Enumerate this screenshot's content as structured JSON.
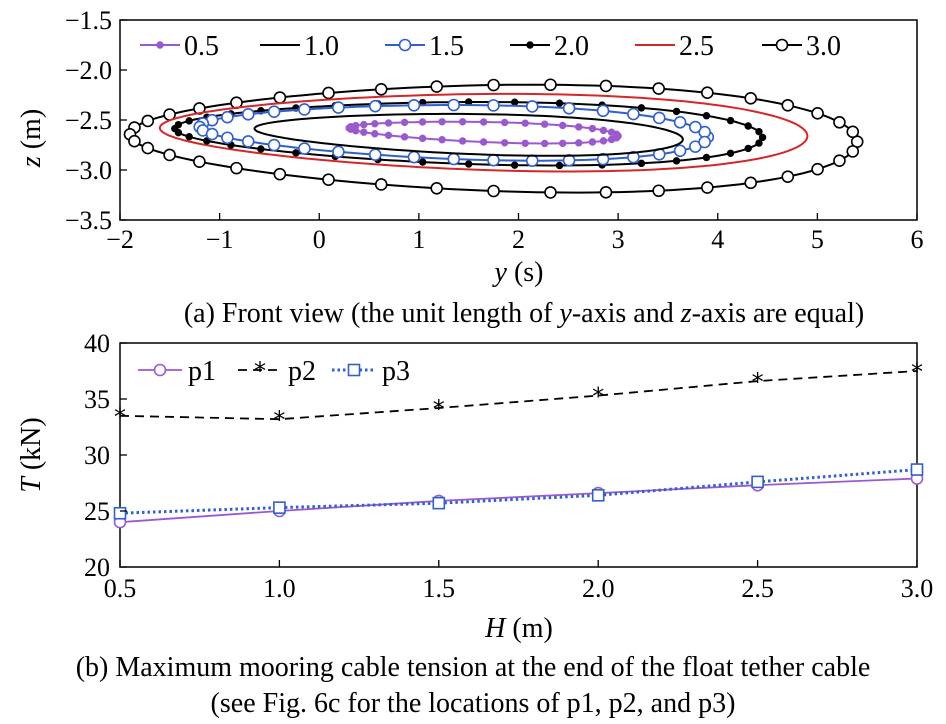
{
  "chart_data": [
    {
      "type": "line",
      "xlabel": "y (s)",
      "xlabel_var": "y",
      "xlabel_unit": "(s)",
      "ylabel": "z (m)",
      "ylabel_var": "z",
      "ylabel_unit": "(m)",
      "xlim": [
        -2,
        6
      ],
      "ylim": [
        -3.5,
        -1.5
      ],
      "xticks": [
        "−2",
        "−1",
        "0",
        "1",
        "2",
        "3",
        "4",
        "5",
        "6"
      ],
      "yticks": [
        "−1.5",
        "−2.0",
        "−2.5",
        "−3.0",
        "−3.5"
      ],
      "legend_position": "top-left",
      "caption": "(a) Front view (the unit length of y-axis and z-axis are equal)",
      "caption_parts": [
        "(a) Front view (the unit length of ",
        "y",
        "-axis and ",
        "z",
        "-axis are equal)"
      ],
      "series": [
        {
          "name": "0.5",
          "color": "#9b59d0",
          "marker": "dot",
          "ellipse": {
            "cx": 1.65,
            "cy": -2.62,
            "ax": 1.35,
            "az": 0.1,
            "tilt": -0.12
          }
        },
        {
          "name": "1.0",
          "color": "#000000",
          "marker": "none",
          "ellipse": {
            "cx": 1.5,
            "cy": -2.64,
            "ax": 2.15,
            "az": 0.2,
            "tilt": -0.1
          }
        },
        {
          "name": "1.5",
          "color": "#2f5fd0",
          "marker": "circle",
          "ellipse": {
            "cx": 1.35,
            "cy": -2.62,
            "ax": 2.55,
            "az": 0.27,
            "tilt": -0.08
          }
        },
        {
          "name": "2.0",
          "color": "#000000",
          "marker": "dot",
          "ellipse": {
            "cx": 1.5,
            "cy": -2.63,
            "ax": 2.95,
            "az": 0.31,
            "tilt": -0.06
          }
        },
        {
          "name": "2.5",
          "color": "#d62728",
          "marker": "none",
          "ellipse": {
            "cx": 1.65,
            "cy": -2.62,
            "ax": 3.25,
            "az": 0.38,
            "tilt": -0.05
          }
        },
        {
          "name": "3.0",
          "color": "#000000",
          "marker": "circle",
          "ellipse": {
            "cx": 1.75,
            "cy": -2.68,
            "ax": 3.65,
            "az": 0.53,
            "tilt": -0.04
          }
        }
      ]
    },
    {
      "type": "line",
      "xlabel": "H (m)",
      "xlabel_var": "H",
      "xlabel_unit": "(m)",
      "ylabel": "T (kN)",
      "ylabel_var": "T",
      "ylabel_unit": "(kN)",
      "x": [
        0.5,
        1.0,
        1.5,
        2.0,
        2.5,
        3.0
      ],
      "xlim": [
        0.5,
        3.0
      ],
      "ylim": [
        20,
        40
      ],
      "xticks": [
        "0.5",
        "1.0",
        "1.5",
        "2.0",
        "2.5",
        "3.0"
      ],
      "yticks": [
        "20",
        "25",
        "30",
        "35",
        "40"
      ],
      "legend_position": "top-left",
      "caption_line1": "(b) Maximum mooring cable tension at the end of the float tether cable",
      "caption_line2": "(see Fig. 6c for the locations of p1, p2, and p3)",
      "series": [
        {
          "name": "p1",
          "color": "#9b59d0",
          "marker": "circle",
          "dash": "solid",
          "values": [
            24.0,
            25.0,
            25.9,
            26.6,
            27.3,
            27.9
          ]
        },
        {
          "name": "p2",
          "color": "#000000",
          "marker": "star",
          "dash": "dashed",
          "values": [
            33.5,
            33.2,
            34.2,
            35.3,
            36.6,
            37.5
          ]
        },
        {
          "name": "p3",
          "color": "#2f5fd0",
          "marker": "square",
          "dash": "dotted",
          "values": [
            24.8,
            25.3,
            25.7,
            26.4,
            27.6,
            28.7
          ]
        }
      ]
    }
  ]
}
